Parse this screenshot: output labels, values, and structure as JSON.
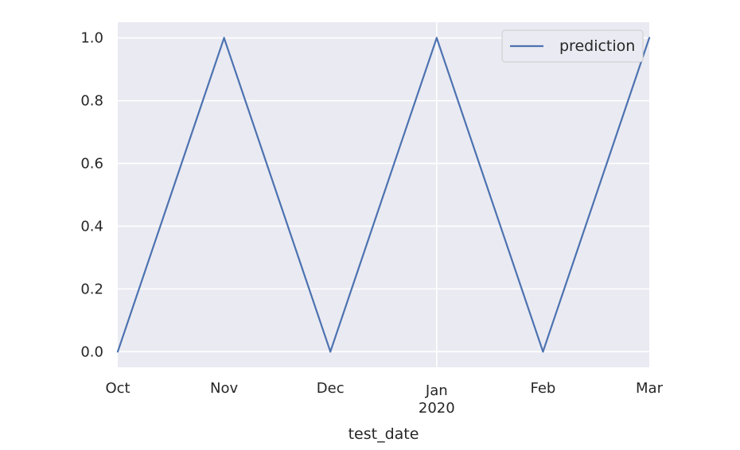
{
  "chart_data": {
    "type": "line",
    "xlabel": "test_date",
    "ylabel": "",
    "x": [
      "2019-10",
      "2019-11",
      "2019-12",
      "2020-01",
      "2020-02",
      "2020-03"
    ],
    "xtick_labels": [
      "Oct",
      "Nov",
      "Dec",
      "Jan\n2020",
      "Feb",
      "Mar"
    ],
    "series": [
      {
        "name": "prediction",
        "values": [
          0,
          1,
          0,
          1,
          0,
          1
        ]
      }
    ],
    "yticks": [
      0.0,
      0.2,
      0.4,
      0.6,
      0.8,
      1.0
    ],
    "ytick_labels": [
      "0.0",
      "0.2",
      "0.4",
      "0.6",
      "0.8",
      "1.0"
    ],
    "ylim": [
      -0.05,
      1.05
    ],
    "grid": true,
    "legend": "upper right",
    "colors": {
      "line": "#4c72b0",
      "plot_background": "#eaeaf2",
      "grid": "#ffffff"
    }
  }
}
